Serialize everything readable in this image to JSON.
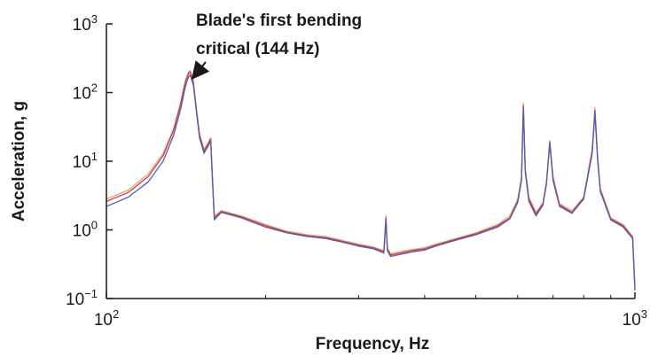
{
  "chart_data": {
    "type": "line",
    "title": "",
    "xlabel": "Frequency, Hz",
    "ylabel": "Acceleration, g",
    "xscale": "log",
    "yscale": "log",
    "xlim": [
      100,
      1000
    ],
    "ylim": [
      0.1,
      1000
    ],
    "x_ticks": [
      {
        "value": 100,
        "base": "10",
        "exp": "2"
      },
      {
        "value": 1000,
        "base": "10",
        "exp": "3"
      }
    ],
    "y_ticks": [
      {
        "value": 0.1,
        "base": "10",
        "exp": "−1"
      },
      {
        "value": 1,
        "base": "10",
        "exp": "0"
      },
      {
        "value": 10,
        "base": "10",
        "exp": "1"
      },
      {
        "value": 100,
        "base": "10",
        "exp": "2"
      },
      {
        "value": 1000,
        "base": "10",
        "exp": "3"
      }
    ],
    "grid": false,
    "annotation": {
      "lines": [
        "Blade's first bending",
        "critical (144 Hz)"
      ],
      "target_x": 144,
      "target_y": 150
    },
    "series": [
      {
        "color": "#f0a070",
        "x": [
          100,
          110,
          120,
          128,
          134,
          138,
          141,
          143,
          144,
          146,
          148,
          150,
          153,
          156,
          157.5,
          158.5,
          160,
          165,
          180,
          200,
          220,
          240,
          260,
          280,
          300,
          320,
          335,
          338,
          340,
          345,
          360,
          380,
          400,
          420,
          450,
          500,
          550,
          580,
          600,
          610,
          615,
          620,
          630,
          650,
          670,
          680,
          690,
          700,
          720,
          760,
          800,
          830,
          840,
          850,
          860,
          900,
          950,
          990,
          1000
        ],
        "y": [
          2.8,
          3.8,
          6.5,
          13,
          30,
          70,
          150,
          200,
          210,
          150,
          60,
          25,
          15,
          19,
          22,
          8,
          1.6,
          1.9,
          1.6,
          1.2,
          0.95,
          0.85,
          0.8,
          0.7,
          0.62,
          0.56,
          0.5,
          1.6,
          0.55,
          0.45,
          0.48,
          0.52,
          0.55,
          0.62,
          0.72,
          0.9,
          1.2,
          1.6,
          2.8,
          6,
          70,
          8,
          3,
          1.8,
          2.5,
          5,
          20,
          6,
          2.4,
          1.9,
          3,
          15,
          60,
          12,
          4,
          1.5,
          1.2,
          0.8,
          0.15
        ]
      },
      {
        "color": "#c04050",
        "x": [
          100,
          110,
          120,
          128,
          134,
          138,
          141,
          143,
          144,
          146,
          148,
          150,
          153,
          156,
          157.5,
          158.5,
          160,
          165,
          180,
          200,
          220,
          240,
          260,
          280,
          300,
          320,
          335,
          338,
          340,
          345,
          360,
          380,
          400,
          420,
          450,
          500,
          550,
          580,
          600,
          610,
          615,
          620,
          630,
          650,
          670,
          680,
          690,
          700,
          720,
          760,
          800,
          830,
          840,
          850,
          860,
          900,
          950,
          990,
          1000
        ],
        "y": [
          2.6,
          3.5,
          6,
          12,
          28,
          65,
          140,
          190,
          200,
          140,
          55,
          24,
          14,
          18,
          21,
          7,
          1.5,
          1.85,
          1.55,
          1.15,
          0.92,
          0.82,
          0.77,
          0.68,
          0.6,
          0.55,
          0.48,
          1.5,
          0.52,
          0.43,
          0.46,
          0.5,
          0.53,
          0.6,
          0.7,
          0.88,
          1.15,
          1.5,
          2.6,
          5.5,
          65,
          7.5,
          2.8,
          1.7,
          2.4,
          4.8,
          19,
          5.5,
          2.3,
          1.8,
          2.9,
          14,
          55,
          11,
          3.8,
          1.45,
          1.15,
          0.78,
          0.14
        ]
      },
      {
        "color": "#5060b0",
        "x": [
          100,
          110,
          120,
          128,
          134,
          138,
          141,
          143,
          144,
          146,
          148,
          150,
          153,
          156,
          157.5,
          158.5,
          160,
          165,
          180,
          200,
          220,
          240,
          260,
          280,
          300,
          320,
          335,
          338,
          340,
          345,
          360,
          380,
          400,
          420,
          450,
          500,
          550,
          580,
          600,
          610,
          615,
          620,
          630,
          650,
          670,
          680,
          690,
          700,
          720,
          760,
          800,
          830,
          840,
          850,
          860,
          900,
          950,
          990,
          1000
        ],
        "y": [
          2.2,
          3,
          5,
          10,
          24,
          55,
          120,
          170,
          180,
          130,
          52,
          22,
          13,
          17,
          20,
          6.5,
          1.4,
          1.8,
          1.5,
          1.1,
          0.9,
          0.8,
          0.75,
          0.66,
          0.58,
          0.53,
          0.46,
          1.4,
          0.5,
          0.41,
          0.44,
          0.48,
          0.51,
          0.58,
          0.68,
          0.85,
          1.1,
          1.45,
          2.5,
          5.2,
          60,
          7,
          2.6,
          1.6,
          2.3,
          4.6,
          18,
          5.2,
          2.2,
          1.75,
          2.8,
          13,
          50,
          10.5,
          3.6,
          1.4,
          1.1,
          0.75,
          0.13
        ]
      }
    ]
  }
}
